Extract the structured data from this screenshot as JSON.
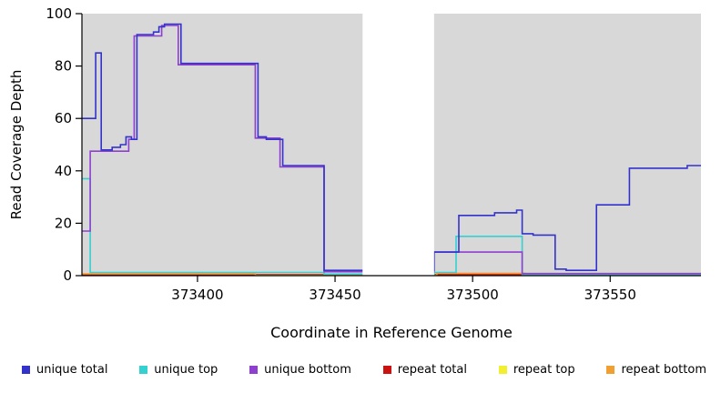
{
  "chart_data": {
    "type": "line",
    "subtype": "step-coverage",
    "title": "",
    "xlabel": "Coordinate in Reference Genome",
    "ylabel": "Read Coverage Depth",
    "xlim": [
      373358,
      373583
    ],
    "ylim": [
      0,
      100
    ],
    "x_ticks": [
      373400,
      373450,
      373500,
      373550
    ],
    "y_ticks": [
      0,
      20,
      40,
      60,
      80,
      100
    ],
    "grid": "off",
    "legend_position": "bottom",
    "plot_background": "#d8d8d8",
    "mask_color": "#ffffff",
    "axis_color": "#000000",
    "masked_region": [
      373460,
      373486
    ],
    "series": [
      {
        "name": "repeat top",
        "color": "#f2ee30",
        "points": [
          [
            373358,
            0.2
          ]
        ]
      },
      {
        "name": "repeat total",
        "color": "#cc1111",
        "points": [
          [
            373358,
            0.4
          ]
        ]
      },
      {
        "name": "repeat bottom",
        "color": "#f0a030",
        "points": [
          [
            373358,
            0.7
          ],
          [
            373421,
            0.2
          ],
          [
            373487,
            0.9
          ],
          [
            373519,
            0.2
          ]
        ]
      },
      {
        "name": "unique top",
        "color": "#35d0d0",
        "points": [
          [
            373358,
            37
          ],
          [
            373361,
            1.2
          ],
          [
            373446,
            0.6
          ],
          [
            373486,
            1.2
          ],
          [
            373494,
            15
          ],
          [
            373518,
            0.2
          ]
        ]
      },
      {
        "name": "unique bottom",
        "color": "#8f3fd0",
        "points": [
          [
            373358,
            17
          ],
          [
            373361,
            47.5
          ],
          [
            373375,
            52
          ],
          [
            373377,
            91.5
          ],
          [
            373387,
            95.5
          ],
          [
            373393,
            80.5
          ],
          [
            373421,
            52.5
          ],
          [
            373430,
            41.5
          ],
          [
            373446,
            1.5
          ],
          [
            373486,
            9
          ],
          [
            373518,
            0.8
          ]
        ]
      },
      {
        "name": "unique total",
        "color": "#3333cc",
        "points": [
          [
            373358,
            60
          ],
          [
            373363,
            85
          ],
          [
            373365,
            48
          ],
          [
            373369,
            49
          ],
          [
            373372,
            50
          ],
          [
            373374,
            53
          ],
          [
            373376,
            52
          ],
          [
            373378,
            92
          ],
          [
            373384,
            93
          ],
          [
            373386,
            95
          ],
          [
            373388,
            96
          ],
          [
            373394,
            81
          ],
          [
            373422,
            53
          ],
          [
            373425,
            52
          ],
          [
            373431,
            42
          ],
          [
            373446,
            2
          ],
          [
            373486,
            9
          ],
          [
            373495,
            23
          ],
          [
            373508,
            24
          ],
          [
            373516,
            25
          ],
          [
            373518,
            16
          ],
          [
            373522,
            15.5
          ],
          [
            373530,
            2.5
          ],
          [
            373534,
            2
          ],
          [
            373545,
            27
          ],
          [
            373557,
            41
          ],
          [
            373578,
            42
          ]
        ]
      }
    ],
    "legend_order": [
      "unique total",
      "unique top",
      "unique bottom",
      "repeat total",
      "repeat top",
      "repeat bottom"
    ]
  }
}
